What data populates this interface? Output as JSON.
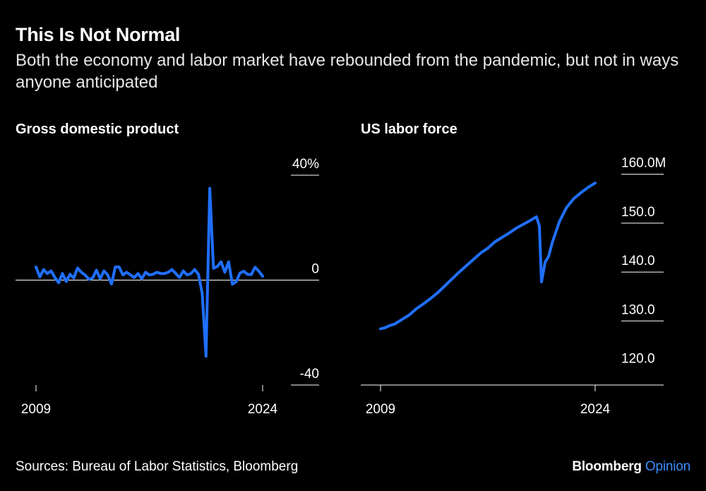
{
  "header": {
    "title": "This Is Not Normal",
    "subtitle": "Both the economy and labor market have rebounded from the pandemic, but not in ways anyone anticipated"
  },
  "footer": {
    "source": "Sources: Bureau of Labor Statistics, Bloomberg",
    "brand_main": "Bloomberg",
    "brand_accent": "Opinion"
  },
  "colors": {
    "background": "#000000",
    "line": "#1f6fff",
    "text": "#ffffff",
    "accent": "#3b8dff"
  },
  "chart_data": [
    {
      "type": "line",
      "title": "Gross domestic product",
      "ylim": [
        -40,
        40
      ],
      "yticks": [
        40,
        0,
        -40
      ],
      "ytick_labels": [
        "40%",
        "0",
        "-40"
      ],
      "xlim": [
        2009.0,
        2024.0
      ],
      "xtick_labels": [
        "2009",
        "2024"
      ],
      "zero_line": true,
      "series": [
        {
          "x": [
            2009.0,
            2009.25,
            2009.5,
            2009.75,
            2010.0,
            2010.25,
            2010.5,
            2010.75,
            2011.0,
            2011.25,
            2011.5,
            2011.75,
            2012.0,
            2012.25,
            2012.5,
            2012.75,
            2013.0,
            2013.25,
            2013.5,
            2013.75,
            2014.0,
            2014.25,
            2014.5,
            2014.75,
            2015.0,
            2015.25,
            2015.5,
            2015.75,
            2016.0,
            2016.25,
            2016.5,
            2016.75,
            2017.0,
            2017.25,
            2017.5,
            2017.75,
            2018.0,
            2018.25,
            2018.5,
            2018.75,
            2019.0,
            2019.25,
            2019.5,
            2019.75,
            2020.0,
            2020.25,
            2020.5,
            2020.75,
            2021.0,
            2021.25,
            2021.5,
            2021.75,
            2022.0,
            2022.25,
            2022.5,
            2022.75,
            2023.0,
            2023.25,
            2023.5,
            2023.75,
            2024.0
          ],
          "y": [
            5.0,
            1.2,
            4.0,
            2.5,
            3.5,
            1.0,
            -1.0,
            2.5,
            -0.5,
            2.2,
            0.8,
            4.6,
            3.0,
            2.0,
            0.3,
            0.8,
            3.8,
            0.5,
            3.5,
            2.0,
            -1.5,
            5.0,
            5.0,
            2.0,
            3.0,
            2.0,
            1.0,
            2.5,
            0.5,
            3.0,
            2.0,
            2.2,
            3.0,
            2.5,
            2.5,
            3.0,
            4.0,
            2.5,
            1.0,
            3.5,
            2.0,
            2.5,
            4.0,
            2.2,
            -5.0,
            -29.0,
            35.0,
            4.5,
            5.2,
            7.0,
            3.0,
            7.0,
            -1.6,
            -0.6,
            2.7,
            3.4,
            2.2,
            2.1,
            4.9,
            3.4,
            1.5
          ]
        }
      ]
    },
    {
      "type": "line",
      "title": "US labor force",
      "ylim": [
        116.9,
        159.8
      ],
      "yticks": [
        160.0,
        150.0,
        140.0,
        130.0,
        120.0
      ],
      "ytick_labels": [
        "160.0M",
        "150.0",
        "140.0",
        "130.0",
        "120.0"
      ],
      "xlim": [
        2009.0,
        2024.0
      ],
      "xtick_labels": [
        "2009",
        "2024"
      ],
      "series": [
        {
          "x": [
            2009.0,
            2009.3,
            2009.6,
            2010.0,
            2010.5,
            2011.0,
            2011.5,
            2012.0,
            2012.5,
            2013.0,
            2013.5,
            2014.0,
            2014.5,
            2015.0,
            2015.5,
            2016.0,
            2016.5,
            2017.0,
            2017.5,
            2018.0,
            2018.5,
            2019.0,
            2019.5,
            2019.9,
            2020.1,
            2020.25,
            2020.5,
            2020.75,
            2021.0,
            2021.5,
            2022.0,
            2022.5,
            2023.0,
            2023.5,
            2024.0
          ],
          "y": [
            128.4,
            128.6,
            129.0,
            129.4,
            130.3,
            131.2,
            132.5,
            133.5,
            134.6,
            135.8,
            137.2,
            138.6,
            140.0,
            141.3,
            142.6,
            143.9,
            144.9,
            146.2,
            147.1,
            148.0,
            149.0,
            149.8,
            150.6,
            151.3,
            149.4,
            138.0,
            142.0,
            143.2,
            146.0,
            150.3,
            153.2,
            155.0,
            156.2,
            157.3,
            158.2
          ]
        }
      ]
    }
  ]
}
